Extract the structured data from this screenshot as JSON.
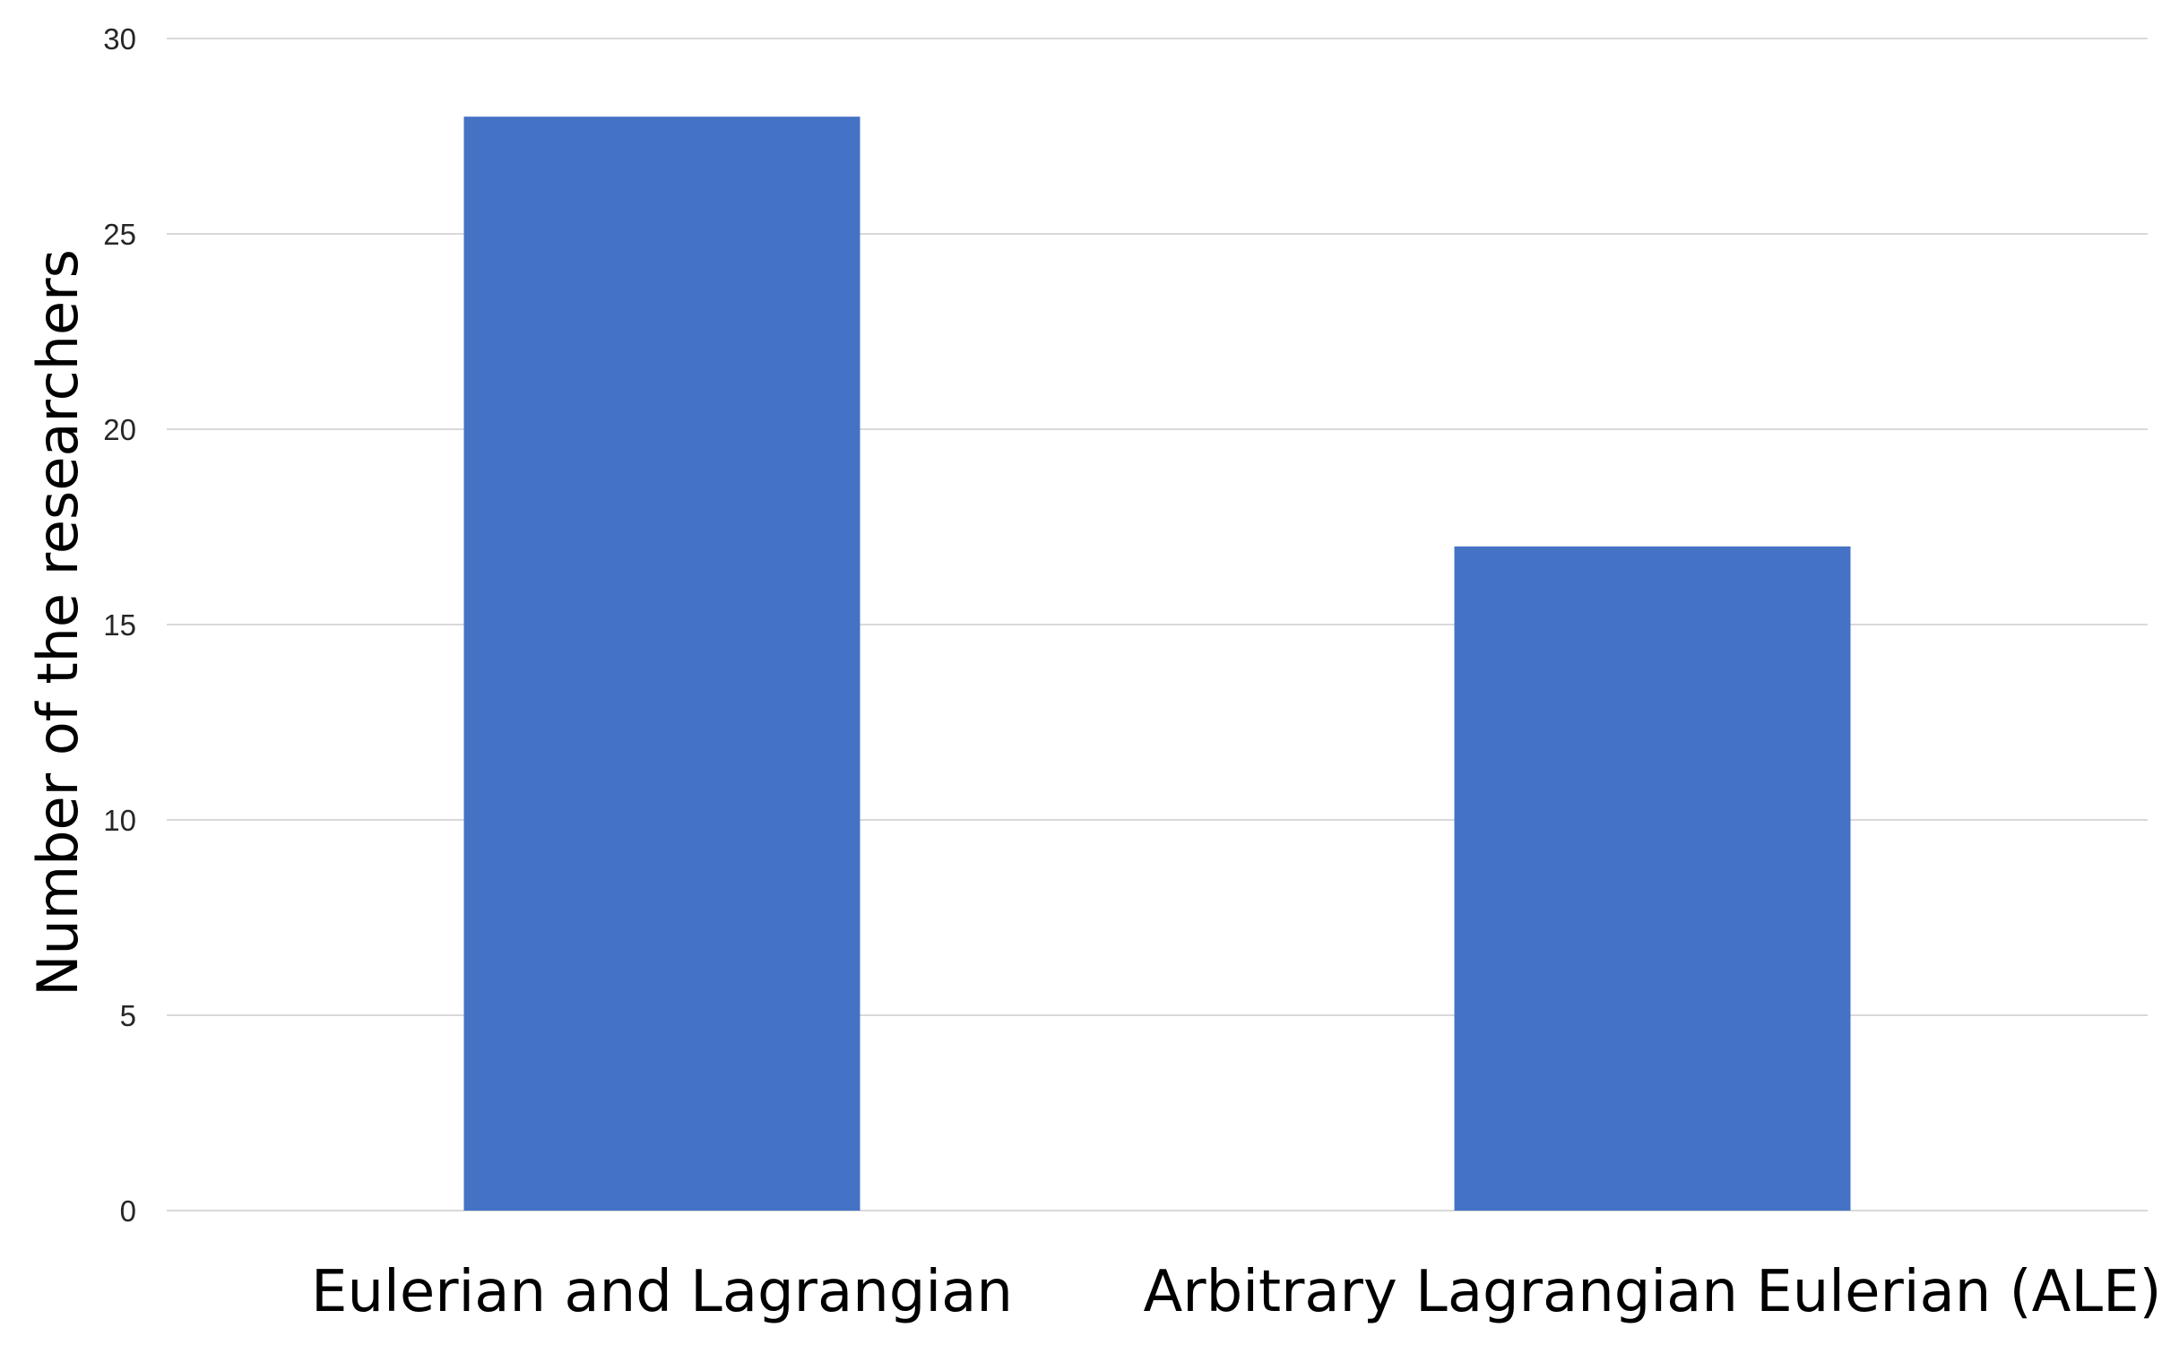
{
  "chart_data": {
    "type": "bar",
    "title": "",
    "xlabel": "",
    "ylabel": "Number of the researchers",
    "categories": [
      "Eulerian and Lagrangian",
      "Arbitrary Lagrangian Eulerian (ALE)"
    ],
    "values": [
      28,
      17
    ],
    "ylim": [
      0,
      30
    ],
    "yticks": [
      0,
      5,
      10,
      15,
      20,
      25,
      30
    ],
    "grid": true,
    "legend": "none",
    "bar_color": "#4472C4",
    "grid_color": "#D9D9D9"
  }
}
